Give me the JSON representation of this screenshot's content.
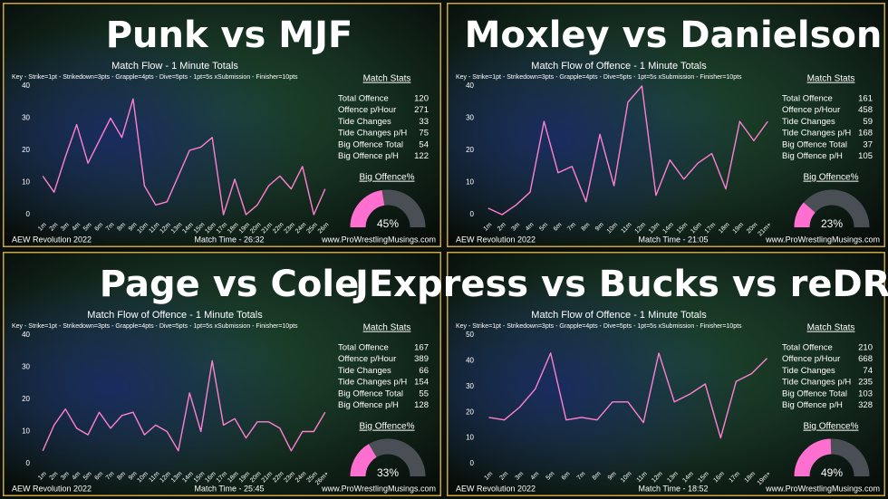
{
  "chart_data": [
    {
      "type": "line",
      "title": "Punk vs MJF",
      "subtitle": "Match Flow - 1 Minute Totals",
      "key": "Key - Strike=1pt - Strikedown=3pts - Grapple=4pts - Dive=5pts - 1pt=5s xSubmission - Finisher=10pts",
      "categories": [
        "1m",
        "2m",
        "3m",
        "4m",
        "5m",
        "6m",
        "7m",
        "8m",
        "9m",
        "10m",
        "11m",
        "12m",
        "13m",
        "14m",
        "15m",
        "16m",
        "17m",
        "18m",
        "19m",
        "20m",
        "21m",
        "22m",
        "23m",
        "24m",
        "25m",
        "26m"
      ],
      "values": [
        12,
        7,
        18,
        28,
        16,
        23,
        30,
        24,
        36,
        9,
        3,
        4,
        12,
        20,
        21,
        24,
        0,
        11,
        0,
        3,
        9,
        12,
        8,
        15,
        0,
        8
      ],
      "color": "#ff80d0",
      "ylim": [
        0,
        40
      ],
      "yticks": [
        0,
        10,
        20,
        30,
        40
      ],
      "stats_title": "Match Stats",
      "stats": [
        {
          "label": "Total Offence",
          "value": 120
        },
        {
          "label": "Offence p/Hour",
          "value": 271
        },
        {
          "label": "Tide Changes",
          "value": 33
        },
        {
          "label": "Tide Changes p/H",
          "value": 75
        },
        {
          "label": "Big Offence Total",
          "value": 54
        },
        {
          "label": "Big Offence p/H",
          "value": 122
        }
      ],
      "big_offence": {
        "title": "Big Offence%",
        "value": 45,
        "label": "45%"
      },
      "event": "AEW Revolution 2022",
      "match_time": "Match Time - 26:32",
      "site": "www.ProWrestlingMusings.com"
    },
    {
      "type": "line",
      "title": "Moxley vs Danielson",
      "subtitle": "Match Flow of Offence - 1 Minute Totals",
      "key": "Key - Strike=1pt - Strikedown=3pts - Grapple=4pts - Dive=5pts - 1pt=5s xSubmission - Finisher=10pts",
      "categories": [
        "1m",
        "2m",
        "3m",
        "4m",
        "5m",
        "6m",
        "7m",
        "8m",
        "9m",
        "10m",
        "11m",
        "12m",
        "13m",
        "14m",
        "15m",
        "16m",
        "17m",
        "18m",
        "19m",
        "20m",
        "21m+"
      ],
      "values": [
        2,
        0,
        3,
        7,
        29,
        13,
        15,
        4,
        25,
        9,
        35,
        40,
        6,
        17,
        11,
        16,
        19,
        8,
        29,
        23,
        29
      ],
      "color": "#ff80d0",
      "ylim": [
        0,
        40
      ],
      "yticks": [
        0,
        10,
        20,
        30,
        40
      ],
      "stats_title": "Match Stats",
      "stats": [
        {
          "label": "Total Offence",
          "value": 161
        },
        {
          "label": "Offence p/Hour",
          "value": 458
        },
        {
          "label": "Tide Changes",
          "value": 59
        },
        {
          "label": "Tide Changes p/H",
          "value": 168
        },
        {
          "label": "Big Offence Total",
          "value": 37
        },
        {
          "label": "Big Offence p/H",
          "value": 105
        }
      ],
      "big_offence": {
        "title": "Big Offence%",
        "value": 23,
        "label": "23%"
      },
      "event": "AEW Revolution 2022",
      "match_time": "Match Time - 21:05",
      "site": "www.ProWrestlingMusings.com"
    },
    {
      "type": "line",
      "title": "Page vs Cole",
      "subtitle": "Match Flow of Offence - 1 Minute Totals",
      "key": "Key - Strike=1pt - Strikedown=3pts - Grapple=4pts - Dive=5pts - 1pt=5s xSubmission - Finisher=10pts",
      "categories": [
        "1m",
        "2m",
        "3m",
        "4m",
        "5m",
        "6m",
        "7m",
        "8m",
        "9m",
        "10m",
        "11m",
        "12m",
        "13m",
        "14m",
        "15m",
        "16m",
        "17m",
        "18m",
        "19m",
        "20m",
        "21m",
        "22m",
        "23m",
        "24m",
        "25m",
        "26m+"
      ],
      "values": [
        4,
        12,
        17,
        11,
        9,
        16,
        11,
        15,
        16,
        9,
        12,
        10,
        4,
        22,
        10,
        32,
        12,
        14,
        8,
        13,
        13,
        11,
        4,
        10,
        10,
        16
      ],
      "color": "#ff80d0",
      "ylim": [
        0,
        40
      ],
      "yticks": [
        0,
        10,
        20,
        30,
        40
      ],
      "stats_title": "Match Stats",
      "stats": [
        {
          "label": "Total Offence",
          "value": 167
        },
        {
          "label": "Offence p/Hour",
          "value": 389
        },
        {
          "label": "Tide Changes",
          "value": 66
        },
        {
          "label": "Tide Changes p/H",
          "value": 154
        },
        {
          "label": "Big Offence Total",
          "value": 55
        },
        {
          "label": "Big Offence p/H",
          "value": 128
        }
      ],
      "big_offence": {
        "title": "Big Offence%",
        "value": 33,
        "label": "33%"
      },
      "event": "AEW Revolution 2022",
      "match_time": "Match Time - 25:45",
      "site": "www.ProWrestlingMusings.com"
    },
    {
      "type": "line",
      "title": "JExpress vs Bucks vs reDRagon",
      "subtitle": "Match Flow of Offence - 1 Minute Totals",
      "key": "Key - Strike=1pt - Strikedown=3pts - Grapple=4pts - Dive=5pts - 1pt=5s xSubmission - Finisher=10pts",
      "categories": [
        "1m",
        "2m",
        "3m",
        "4m",
        "5m",
        "6m",
        "7m",
        "8m",
        "9m",
        "10m",
        "11m",
        "12m",
        "13m",
        "14m",
        "15m",
        "16m",
        "17m",
        "18m",
        "19m+"
      ],
      "values": [
        18,
        17,
        22,
        29,
        43,
        17,
        18,
        17,
        24,
        24,
        16,
        43,
        24,
        27,
        31,
        10,
        32,
        35,
        41
      ],
      "color": "#ff80d0",
      "ylim": [
        0,
        50
      ],
      "yticks": [
        0,
        10,
        20,
        30,
        40,
        50
      ],
      "stats_title": "Match Stats",
      "stats": [
        {
          "label": "Total Offence",
          "value": 210
        },
        {
          "label": "Offence p/Hour",
          "value": 668
        },
        {
          "label": "Tide Changes",
          "value": 74
        },
        {
          "label": "Tide Changes p/H",
          "value": 235
        },
        {
          "label": "Big Offence Total",
          "value": 103
        },
        {
          "label": "Big Offence p/H",
          "value": 328
        }
      ],
      "big_offence": {
        "title": "Big Offence%",
        "value": 49,
        "label": "49%"
      },
      "event": "AEW Revolution 2022",
      "match_time": "Match Time - 18:52",
      "site": "www.ProWrestlingMusings.com"
    }
  ]
}
